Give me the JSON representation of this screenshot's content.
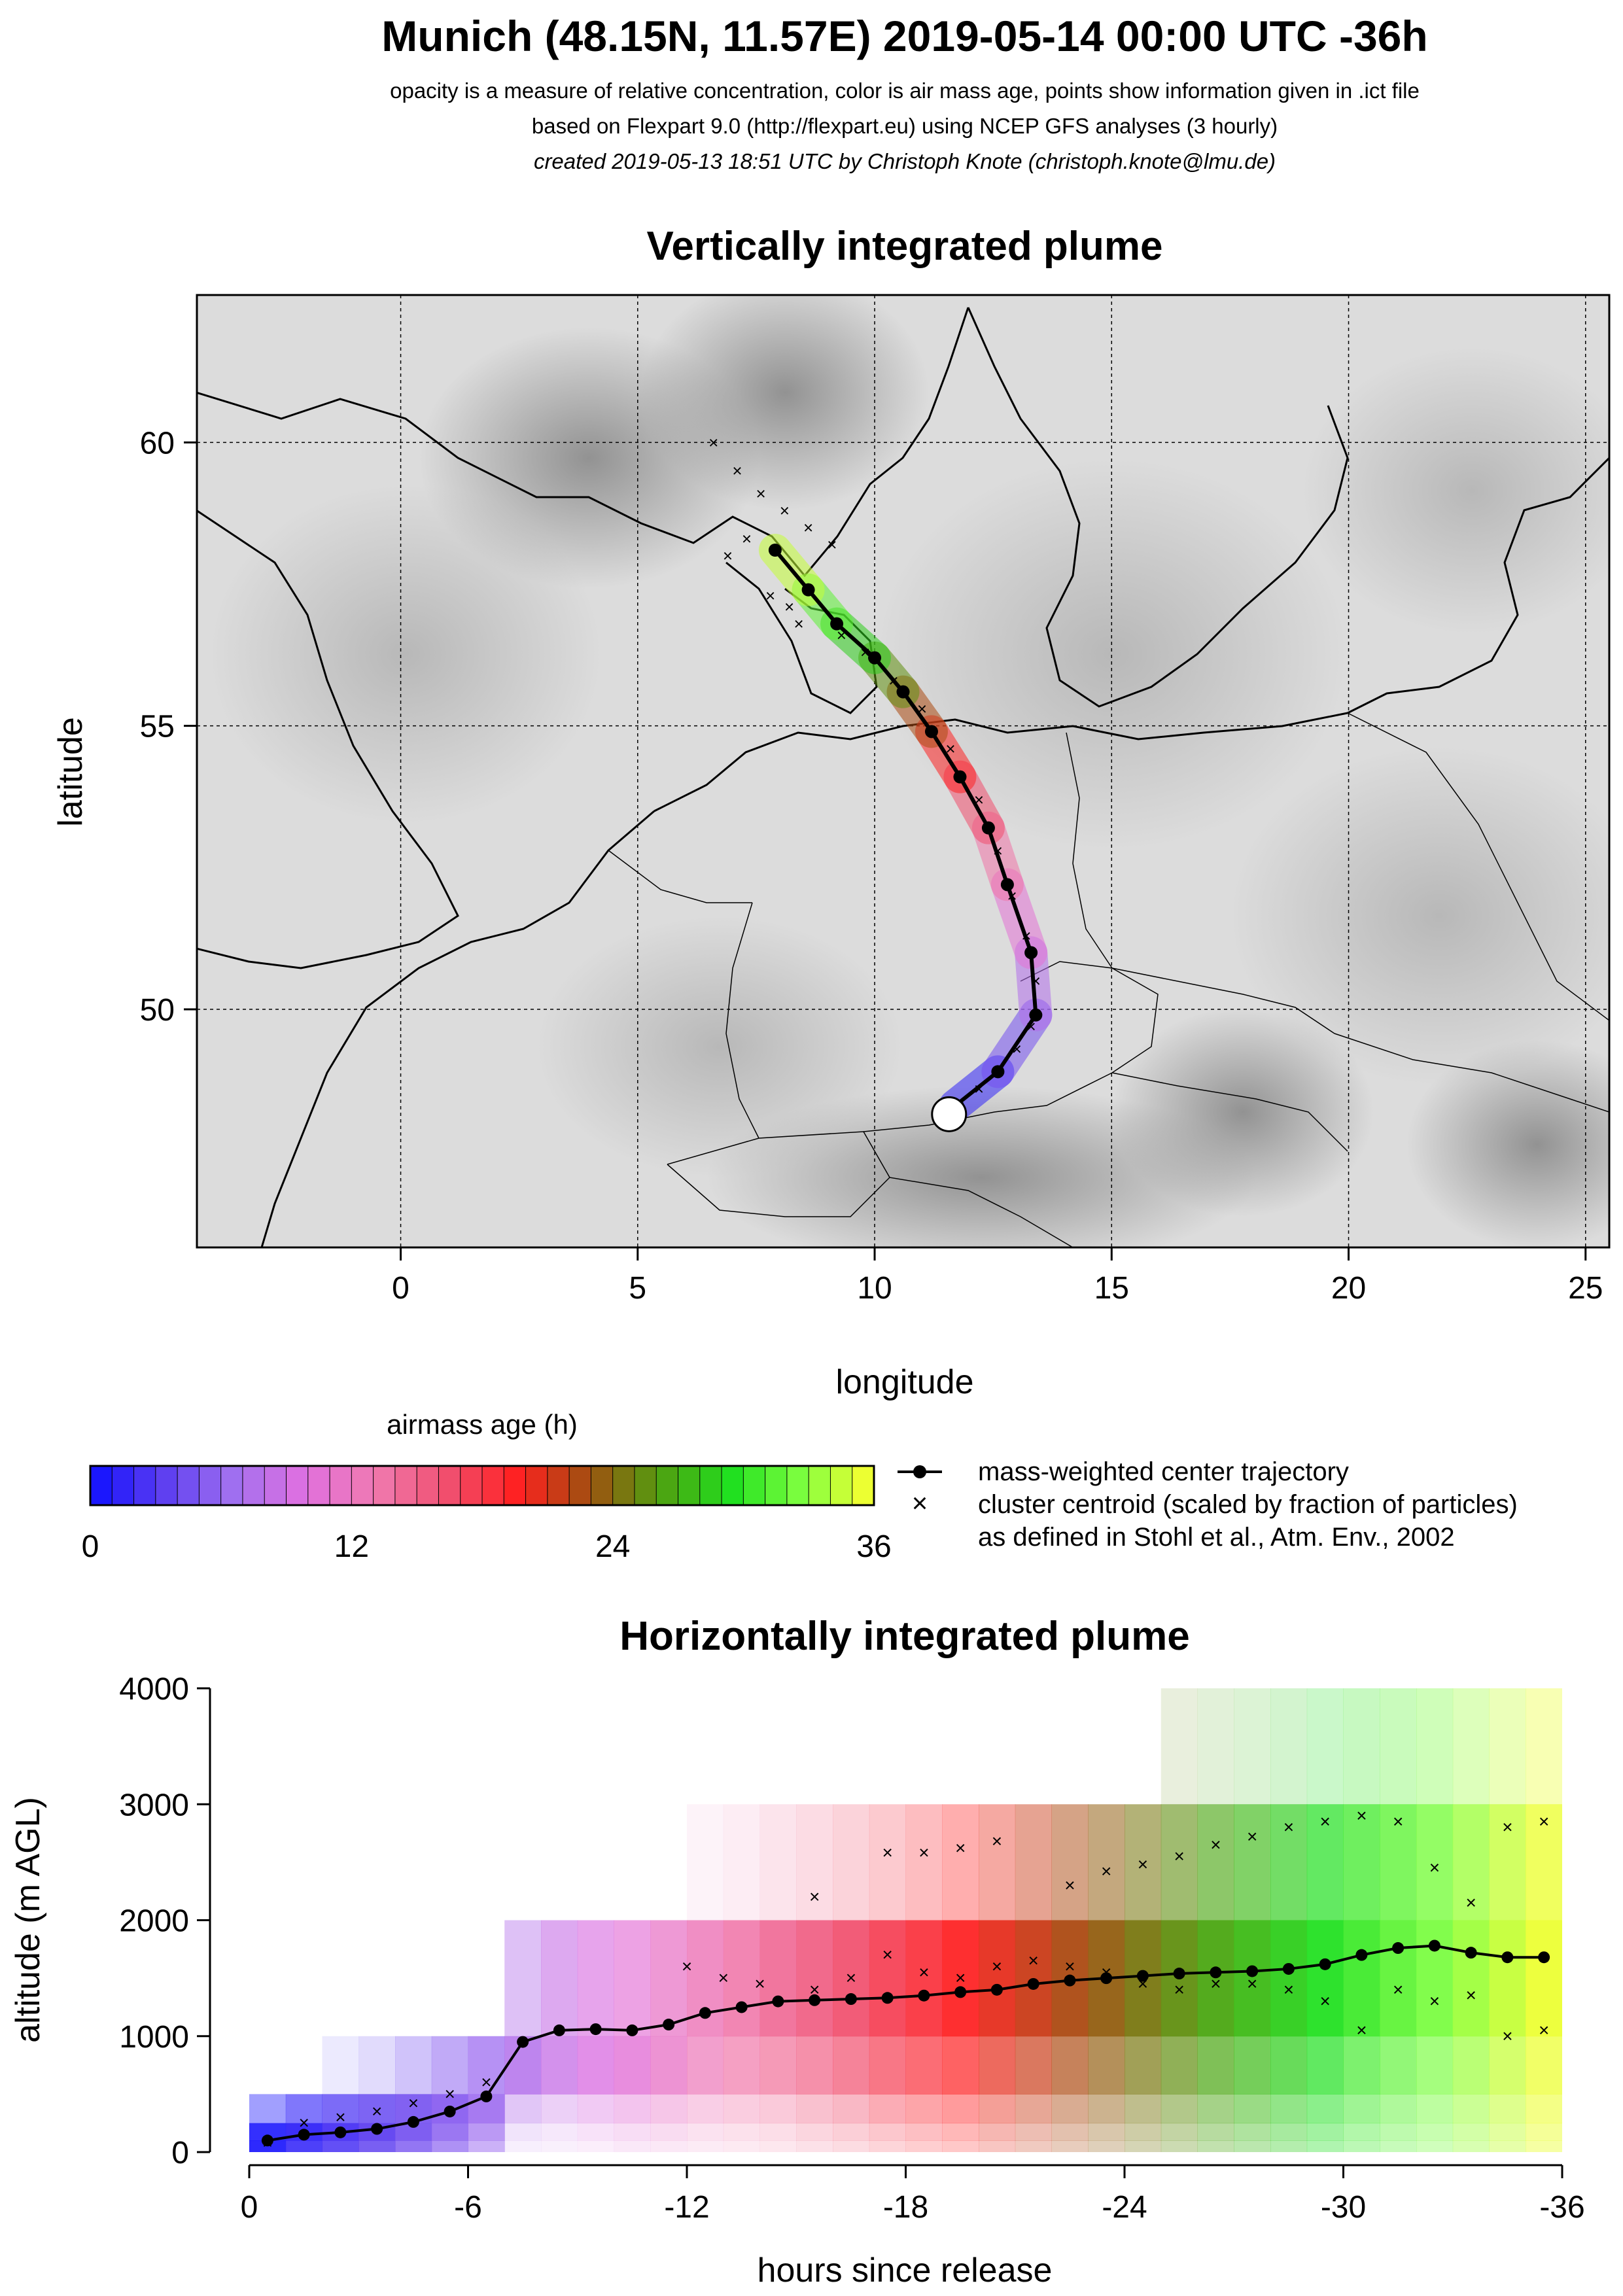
{
  "header": {
    "title": "Munich (48.15N, 11.57E) 2019-05-14 00:00 UTC -36h",
    "line1": "opacity is a measure of relative concentration, color is air mass age, points show information given in .ict file",
    "line2": "based on Flexpart 9.0 (http://flexpart.eu) using NCEP GFS analyses (3 hourly)",
    "line3": "created 2019-05-13 18:51 UTC by Christoph Knote (christoph.knote@lmu.de)"
  },
  "colors": {
    "age_scale": [
      "#1010ff",
      "#5a3cf0",
      "#a070f0",
      "#e070e0",
      "#f07ab0",
      "#f05070",
      "#ff2020",
      "#a05010",
      "#50a010",
      "#20e020",
      "#80ff40",
      "#ffff30"
    ],
    "terrain_light": "#e0e0e0",
    "terrain_dark": "#8c8c8c",
    "center_trajectory": "#000000",
    "release_marker": "#ffffff"
  },
  "legend": {
    "colorbar_title": "airmass age (h)",
    "colorbar_ticks": [
      "0",
      "12",
      "24",
      "36"
    ],
    "center_label": "mass-weighted center trajectory",
    "cluster_label": "cluster centroid (scaled by fraction of particles)",
    "cluster_label2": "as defined in Stohl et al., Atm. Env., 2002"
  },
  "chart_data": [
    {
      "type": "scatter",
      "title": "Vertically integrated plume",
      "xlabel": "longitude",
      "ylabel": "latitude",
      "xlim": [
        -4.3,
        25.5
      ],
      "ylim": [
        45.8,
        62.6
      ],
      "xticks": [
        "0",
        "5",
        "10",
        "15",
        "20",
        "25"
      ],
      "yticks": [
        "50",
        "55",
        "60"
      ],
      "grid": true,
      "release_point": {
        "lon": 11.57,
        "lat": 48.15
      },
      "series": [
        {
          "name": "mass-weighted center trajectory",
          "age_hours": [
            0,
            3,
            6,
            9,
            12,
            15,
            18,
            21,
            24,
            27,
            30,
            33,
            36
          ],
          "lon": [
            11.7,
            12.6,
            13.4,
            13.3,
            12.8,
            12.4,
            11.8,
            11.2,
            10.6,
            10.0,
            9.2,
            8.6,
            7.9
          ],
          "lat": [
            48.3,
            48.9,
            49.9,
            51.0,
            52.2,
            53.2,
            54.1,
            54.9,
            55.6,
            56.2,
            56.8,
            57.4,
            58.1
          ]
        },
        {
          "name": "cluster centroid",
          "lon": [
            6.6,
            7.1,
            7.6,
            8.1,
            8.6,
            9.1,
            7.3,
            6.9,
            8.2,
            9.3,
            9.8,
            10.4,
            11.0,
            11.6,
            12.2,
            12.6,
            12.9,
            13.2,
            13.4,
            13.3,
            13.0,
            12.6,
            12.2,
            11.8,
            7.8,
            8.4
          ],
          "lat": [
            60.0,
            59.5,
            59.1,
            58.8,
            58.5,
            58.2,
            58.3,
            58.0,
            57.1,
            56.6,
            56.3,
            55.8,
            55.3,
            54.6,
            53.7,
            52.8,
            52.0,
            51.3,
            50.5,
            49.7,
            49.3,
            48.9,
            48.6,
            48.3,
            57.3,
            56.8
          ]
        }
      ]
    },
    {
      "type": "heatmap",
      "title": "Horizontally integrated plume",
      "xlabel": "hours since release",
      "ylabel": "altitude (m AGL)",
      "xlim": [
        0,
        -36
      ],
      "ylim": [
        0,
        4000
      ],
      "xticks": [
        "0",
        "-6",
        "-12",
        "-18",
        "-24",
        "-30",
        "-36"
      ],
      "yticks": [
        "0",
        "1000",
        "2000",
        "3000",
        "4000"
      ],
      "altitude_bins_m": [
        0,
        100,
        250,
        500,
        1000,
        2000,
        3000,
        4000
      ],
      "series": [
        {
          "name": "mass-weighted center trajectory",
          "hours": [
            -0.5,
            -1.5,
            -2.5,
            -3.5,
            -4.5,
            -5.5,
            -6.5,
            -7.5,
            -8.5,
            -9.5,
            -10.5,
            -11.5,
            -12.5,
            -13.5,
            -14.5,
            -15.5,
            -16.5,
            -17.5,
            -18.5,
            -19.5,
            -20.5,
            -21.5,
            -22.5,
            -23.5,
            -24.5,
            -25.5,
            -26.5,
            -27.5,
            -28.5,
            -29.5,
            -30.5,
            -31.5,
            -32.5,
            -33.5,
            -34.5,
            -35.5
          ],
          "altitude_m": [
            100,
            150,
            170,
            200,
            260,
            350,
            480,
            950,
            1050,
            1060,
            1050,
            1100,
            1200,
            1250,
            1300,
            1310,
            1320,
            1330,
            1350,
            1380,
            1400,
            1450,
            1480,
            1500,
            1520,
            1540,
            1550,
            1560,
            1580,
            1620,
            1700,
            1760,
            1780,
            1720,
            1680,
            1680
          ]
        },
        {
          "name": "cluster centroid",
          "hours": [
            -0.5,
            -1.5,
            -2.5,
            -3.5,
            -4.5,
            -5.5,
            -6.5,
            -12,
            -13,
            -14,
            -15.5,
            -16.5,
            -17.5,
            -18.5,
            -19.5,
            -20.5,
            -21.5,
            -22.5,
            -23.5,
            -24.5,
            -25.5,
            -26.5,
            -27.5,
            -28.5,
            -29.5,
            -30.5,
            -31.5,
            -32.5,
            -33.5,
            -34.5,
            -35.5,
            -15.5,
            -17.5,
            -18.5,
            -19.5,
            -20.5,
            -22.5,
            -23.5,
            -24.5,
            -25.5,
            -26.5,
            -27.5,
            -28.5,
            -29.5,
            -30.5,
            -31.5,
            -32.5,
            -33.5,
            -34.5,
            -35.5
          ],
          "altitude_m": [
            80,
            250,
            300,
            350,
            420,
            500,
            600,
            1600,
            1500,
            1450,
            1400,
            1500,
            1700,
            1550,
            1500,
            1600,
            1650,
            1600,
            1550,
            1450,
            1400,
            1450,
            1450,
            1400,
            1300,
            1050,
            1400,
            1300,
            1350,
            1000,
            1050,
            2200,
            2580,
            2580,
            2620,
            2680,
            2300,
            2420,
            2480,
            2550,
            2650,
            2720,
            2800,
            2850,
            2900,
            2850,
            2450,
            2150,
            2800,
            2850
          ]
        }
      ]
    }
  ]
}
